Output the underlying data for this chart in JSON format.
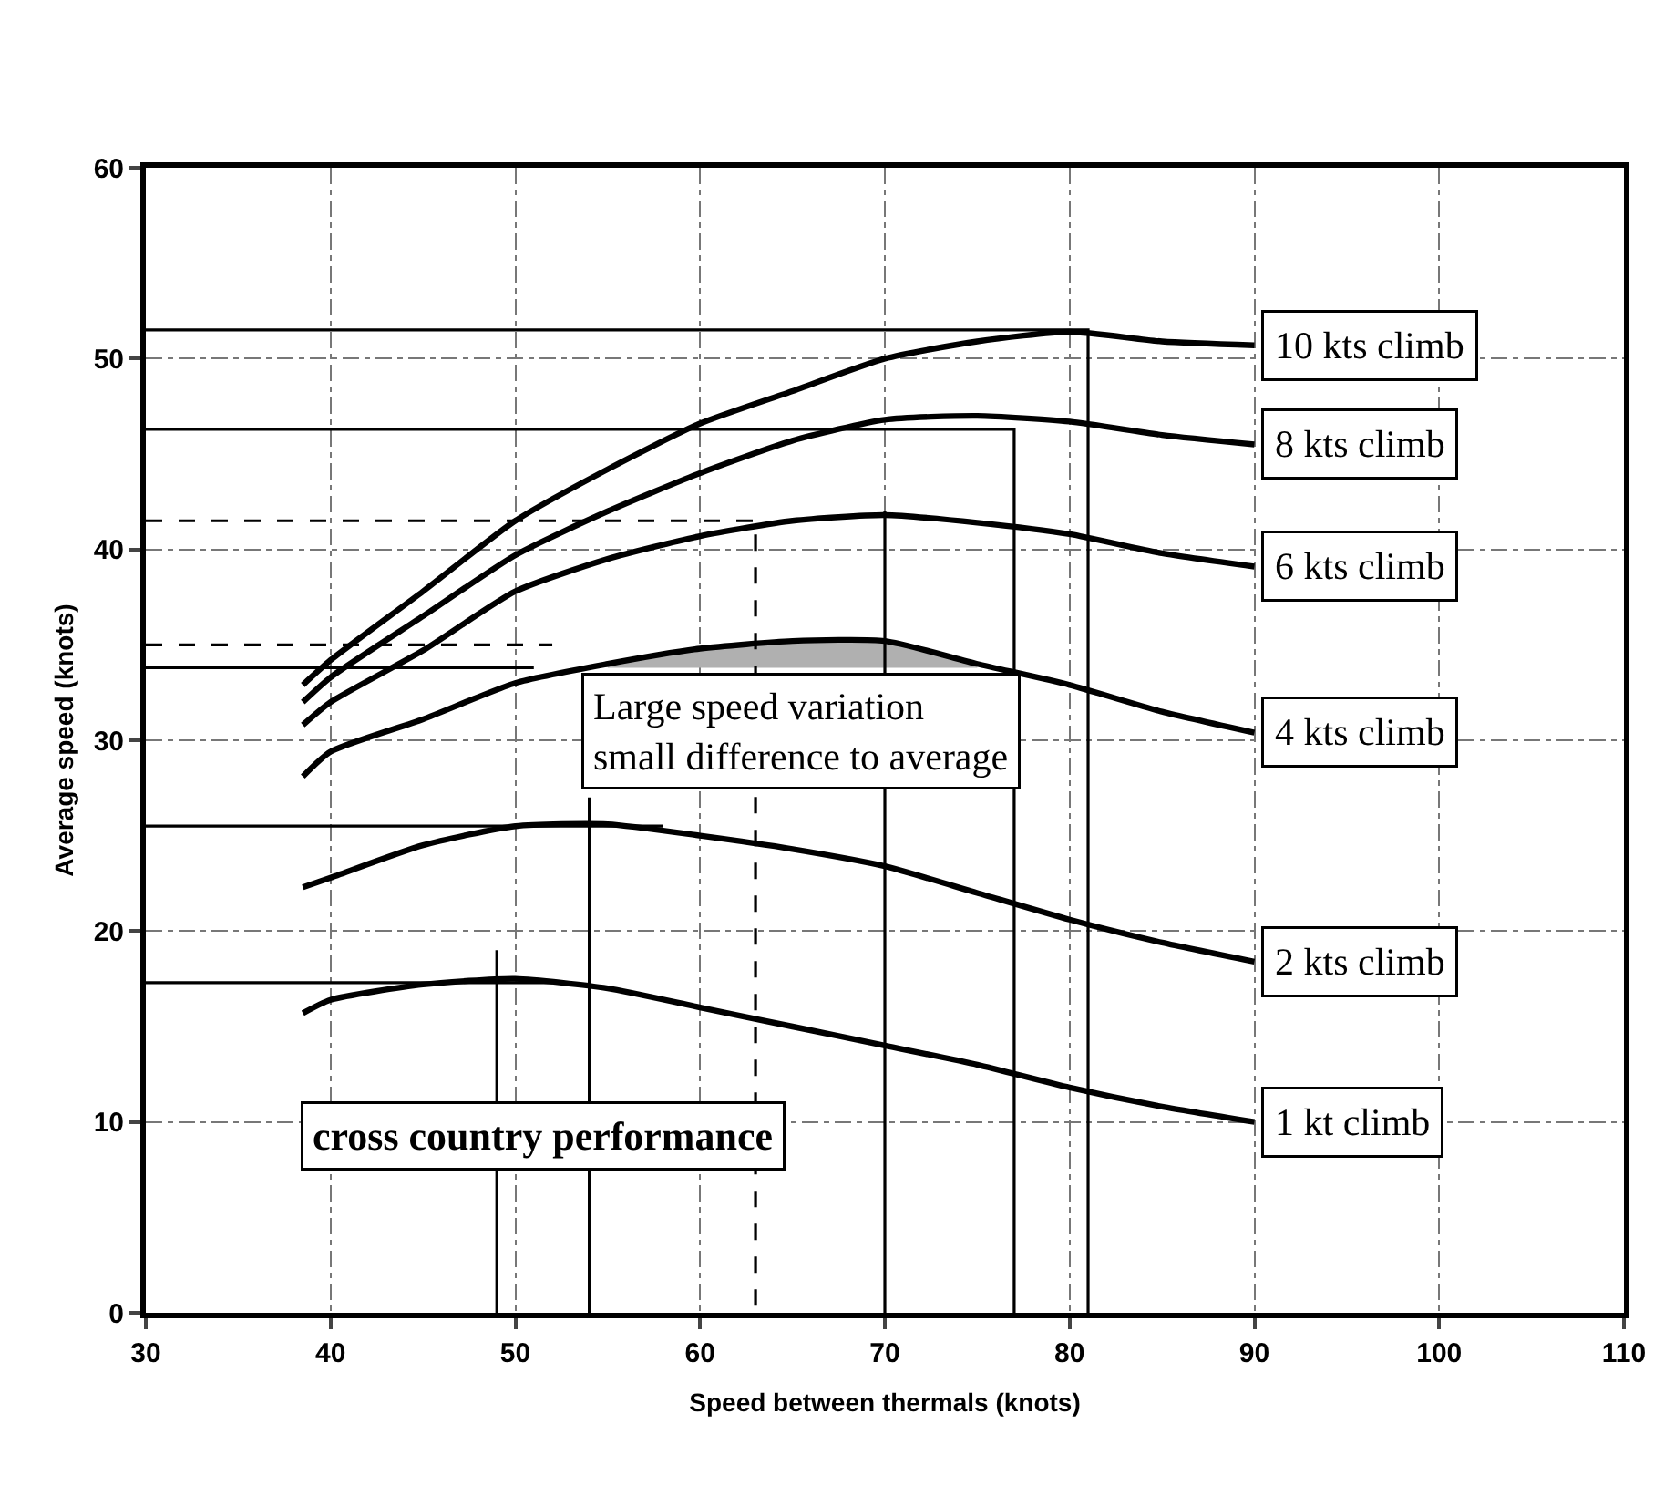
{
  "chart_data": {
    "type": "line",
    "xlabel": "Speed between thermals (knots)",
    "ylabel": "Average speed (knots)",
    "x": [
      38.5,
      40,
      45,
      50,
      55,
      60,
      65,
      70,
      75,
      80,
      85,
      90
    ],
    "series": [
      {
        "name": "10 kts climb",
        "color": "#000000",
        "values": [
          32.9,
          34.2,
          37.8,
          41.5,
          44.2,
          46.6,
          48.3,
          50,
          50.9,
          51.4,
          50.9,
          50.7
        ]
      },
      {
        "name": "8 kts climb",
        "color": "#000000",
        "values": [
          32,
          33.3,
          36.5,
          39.7,
          42,
          44,
          45.7,
          46.8,
          47,
          46.7,
          46,
          45.5
        ]
      },
      {
        "name": "6 kts climb",
        "color": "#000000",
        "values": [
          30.8,
          32,
          34.7,
          37.8,
          39.5,
          40.7,
          41.5,
          41.8,
          41.4,
          40.8,
          39.8,
          39.1
        ]
      },
      {
        "name": "4 kts climb",
        "color": "#000000",
        "values": [
          28.1,
          29.4,
          31.1,
          33,
          34,
          34.8,
          35.2,
          35.2,
          34,
          32.9,
          31.5,
          30.4
        ],
        "lower": [
          null,
          null,
          null,
          null,
          33.8,
          33.8,
          33.8,
          33.8,
          33.8,
          null,
          null,
          null
        ],
        "upper": [
          null,
          null,
          null,
          null,
          34,
          34.8,
          35.2,
          35.2,
          34,
          null,
          null,
          null
        ]
      },
      {
        "name": "2 kts climb",
        "color": "#000000",
        "values": [
          22.3,
          22.8,
          24.5,
          25.5,
          25.6,
          25,
          24.3,
          23.4,
          22,
          20.6,
          19.4,
          18.4
        ]
      },
      {
        "name": "1 kt climb",
        "color": "#000000",
        "values": [
          15.7,
          16.4,
          17.2,
          17.5,
          17,
          16,
          15,
          14,
          13,
          11.8,
          10.8,
          10
        ]
      },
      {
        "type": "line",
        "color": "#000000",
        "x": [
          30,
          81,
          81
        ],
        "values": [
          51.5,
          51.5,
          0
        ]
      },
      {
        "type": "line",
        "color": "#000000",
        "x": [
          30,
          77,
          77
        ],
        "values": [
          46.3,
          46.3,
          0
        ]
      },
      {
        "type": "line",
        "color": "#000000",
        "x": [
          70,
          70
        ],
        "values": [
          42,
          0
        ]
      },
      {
        "type": "line",
        "color": "#000000",
        "x": [
          30,
          51
        ],
        "values": [
          33.8,
          33.8
        ]
      },
      {
        "type": "line",
        "color": "#000000",
        "x": [
          30,
          58
        ],
        "values": [
          25.5,
          25.5
        ]
      },
      {
        "type": "line",
        "color": "#000000",
        "x": [
          54,
          54
        ],
        "values": [
          27,
          0
        ]
      },
      {
        "type": "line",
        "color": "#000000",
        "x": [
          30,
          52
        ],
        "values": [
          17.3,
          17.3
        ]
      },
      {
        "type": "line",
        "color": "#000000",
        "x": [
          49,
          49
        ],
        "values": [
          19,
          0
        ]
      },
      {
        "type": "line",
        "color": "#000000",
        "line_style": "dashed",
        "x": [
          30,
          63,
          63
        ],
        "values": [
          41.5,
          41.5,
          0
        ]
      },
      {
        "type": "line",
        "color": "#000000",
        "line_style": "dashed",
        "x": [
          30,
          52
        ],
        "values": [
          35,
          35
        ]
      }
    ],
    "xlim": [
      30,
      110
    ],
    "xticks": [
      30,
      40,
      50,
      60,
      70,
      80,
      90,
      100,
      110
    ],
    "ylim": [
      0,
      60
    ],
    "yticks": [
      0,
      10,
      20,
      30,
      40,
      50,
      60
    ],
    "grid": true,
    "marker": "none",
    "annotations": [
      {
        "text": "Large speed variation\nsmall difference to average",
        "x": 65.5,
        "y": 33.5
      },
      "cross country performance"
    ]
  }
}
